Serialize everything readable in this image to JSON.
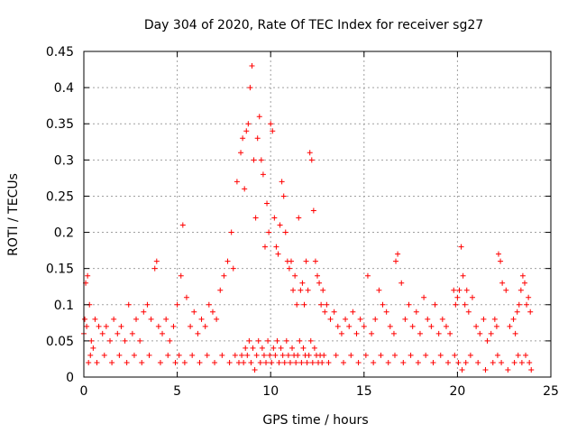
{
  "chart_data": {
    "type": "scatter",
    "title": "Day 304 of 2020, Rate Of TEC Index for receiver sg27",
    "xlabel": "GPS time / hours",
    "ylabel": "ROTI / TECUs",
    "xlim": [
      0,
      25
    ],
    "ylim": [
      0,
      0.45
    ],
    "x_ticks": [
      0,
      5,
      10,
      15,
      20,
      25
    ],
    "x_tick_labels": [
      "0",
      "5",
      "10",
      "15",
      "20",
      "25"
    ],
    "y_ticks": [
      0,
      0.05,
      0.1,
      0.15,
      0.2,
      0.25,
      0.3,
      0.35,
      0.4,
      0.45
    ],
    "y_tick_labels": [
      "0",
      "0.05",
      "0.1",
      "0.15",
      "0.2",
      "0.25",
      "0.3",
      "0.35",
      "0.4",
      "0.45"
    ],
    "grid": true,
    "marker": "+",
    "series": [
      {
        "color": "#ff0000",
        "x": [
          0.0,
          0.1,
          0.2,
          0.3,
          0.4,
          0.5,
          0.6,
          0.8,
          1.0,
          1.2,
          1.4,
          1.6,
          1.8,
          2.0,
          2.2,
          2.4,
          2.6,
          2.8,
          3.0,
          3.2,
          3.4,
          3.6,
          3.8,
          3.9,
          4.0,
          4.2,
          4.4,
          4.6,
          4.8,
          5.0,
          5.2,
          5.3,
          5.5,
          5.7,
          5.9,
          6.1,
          6.3,
          6.5,
          6.7,
          6.9,
          7.1,
          7.3,
          7.5,
          7.7,
          7.9,
          8.0,
          8.2,
          8.4,
          8.5,
          8.6,
          8.7,
          8.8,
          8.9,
          9.0,
          9.1,
          9.2,
          9.3,
          9.4,
          9.5,
          9.6,
          9.7,
          9.8,
          9.9,
          10.0,
          10.1,
          10.2,
          10.3,
          10.4,
          10.5,
          10.6,
          10.7,
          10.8,
          10.9,
          11.0,
          11.1,
          11.2,
          11.3,
          11.4,
          11.5,
          11.6,
          11.7,
          11.8,
          11.9,
          12.0,
          12.1,
          12.2,
          12.3,
          12.4,
          12.5,
          12.6,
          12.7,
          12.8,
          12.9,
          13.0,
          13.2,
          13.4,
          13.6,
          13.8,
          14.0,
          14.2,
          14.4,
          14.6,
          14.8,
          15.0,
          15.2,
          15.4,
          15.6,
          15.8,
          16.0,
          16.2,
          16.4,
          16.6,
          16.7,
          16.8,
          17.0,
          17.2,
          17.4,
          17.6,
          17.8,
          18.0,
          18.2,
          18.4,
          18.6,
          18.8,
          19.0,
          19.2,
          19.4,
          19.6,
          19.8,
          19.9,
          20.0,
          20.1,
          20.2,
          20.3,
          20.4,
          20.5,
          20.6,
          20.8,
          21.0,
          21.2,
          21.4,
          21.6,
          21.8,
          22.0,
          22.1,
          22.2,
          22.3,
          22.4,
          22.6,
          22.8,
          23.0,
          23.1,
          23.2,
          23.3,
          23.4,
          23.5,
          23.6,
          23.7,
          23.8,
          23.9,
          0.05,
          0.15,
          0.25,
          0.35,
          0.7,
          1.1,
          1.5,
          1.9,
          2.3,
          2.7,
          3.1,
          3.5,
          4.1,
          4.5,
          4.9,
          5.1,
          5.4,
          5.8,
          6.2,
          6.6,
          7.0,
          7.4,
          7.8,
          8.1,
          8.3,
          8.45,
          8.55,
          8.65,
          8.75,
          8.85,
          8.95,
          9.05,
          9.15,
          9.25,
          9.35,
          9.45,
          9.55,
          9.65,
          9.75,
          9.85,
          9.95,
          10.05,
          10.15,
          10.25,
          10.35,
          10.45,
          10.55,
          10.65,
          10.75,
          10.85,
          10.95,
          11.05,
          11.15,
          11.25,
          11.35,
          11.45,
          11.55,
          11.65,
          11.75,
          11.85,
          11.95,
          12.05,
          12.15,
          12.25,
          12.35,
          12.45,
          12.55,
          12.65,
          12.75,
          12.85,
          13.1,
          13.5,
          13.9,
          14.3,
          14.7,
          15.1,
          15.5,
          15.9,
          16.3,
          16.65,
          17.1,
          17.5,
          17.9,
          18.3,
          18.7,
          19.1,
          19.5,
          19.85,
          20.05,
          20.25,
          20.45,
          20.7,
          21.1,
          21.5,
          21.9,
          22.15,
          22.35,
          22.7,
          23.05,
          23.25,
          23.45,
          23.65,
          23.85,
          23.95
        ],
        "y": [
          0.06,
          0.13,
          0.14,
          0.1,
          0.05,
          0.04,
          0.08,
          0.07,
          0.06,
          0.07,
          0.05,
          0.08,
          0.06,
          0.07,
          0.05,
          0.1,
          0.06,
          0.08,
          0.05,
          0.09,
          0.1,
          0.08,
          0.15,
          0.16,
          0.07,
          0.06,
          0.08,
          0.05,
          0.07,
          0.1,
          0.14,
          0.21,
          0.11,
          0.07,
          0.09,
          0.06,
          0.08,
          0.07,
          0.1,
          0.09,
          0.08,
          0.12,
          0.14,
          0.16,
          0.2,
          0.15,
          0.27,
          0.31,
          0.33,
          0.26,
          0.34,
          0.35,
          0.4,
          0.43,
          0.3,
          0.22,
          0.33,
          0.36,
          0.3,
          0.28,
          0.18,
          0.24,
          0.2,
          0.35,
          0.34,
          0.22,
          0.18,
          0.17,
          0.21,
          0.27,
          0.25,
          0.2,
          0.16,
          0.15,
          0.16,
          0.12,
          0.14,
          0.1,
          0.22,
          0.12,
          0.13,
          0.1,
          0.16,
          0.12,
          0.31,
          0.3,
          0.23,
          0.16,
          0.14,
          0.13,
          0.1,
          0.12,
          0.09,
          0.1,
          0.08,
          0.09,
          0.07,
          0.06,
          0.08,
          0.07,
          0.09,
          0.06,
          0.08,
          0.07,
          0.14,
          0.06,
          0.08,
          0.12,
          0.1,
          0.09,
          0.07,
          0.06,
          0.16,
          0.17,
          0.13,
          0.08,
          0.1,
          0.07,
          0.09,
          0.06,
          0.11,
          0.08,
          0.07,
          0.1,
          0.06,
          0.08,
          0.07,
          0.06,
          0.12,
          0.1,
          0.11,
          0.12,
          0.18,
          0.14,
          0.1,
          0.12,
          0.09,
          0.11,
          0.07,
          0.06,
          0.08,
          0.05,
          0.06,
          0.08,
          0.07,
          0.17,
          0.16,
          0.13,
          0.12,
          0.07,
          0.08,
          0.06,
          0.09,
          0.1,
          0.12,
          0.14,
          0.13,
          0.1,
          0.11,
          0.09,
          0.08,
          0.07,
          0.02,
          0.03,
          0.02,
          0.03,
          0.02,
          0.03,
          0.02,
          0.03,
          0.02,
          0.03,
          0.02,
          0.03,
          0.02,
          0.03,
          0.02,
          0.03,
          0.02,
          0.03,
          0.02,
          0.03,
          0.02,
          0.03,
          0.02,
          0.03,
          0.02,
          0.04,
          0.03,
          0.05,
          0.02,
          0.04,
          0.01,
          0.03,
          0.05,
          0.02,
          0.04,
          0.03,
          0.02,
          0.05,
          0.03,
          0.02,
          0.04,
          0.03,
          0.05,
          0.02,
          0.04,
          0.03,
          0.02,
          0.05,
          0.03,
          0.02,
          0.04,
          0.03,
          0.02,
          0.03,
          0.05,
          0.02,
          0.04,
          0.03,
          0.02,
          0.03,
          0.05,
          0.02,
          0.04,
          0.03,
          0.02,
          0.03,
          0.02,
          0.03,
          0.02,
          0.03,
          0.02,
          0.03,
          0.02,
          0.03,
          0.02,
          0.03,
          0.02,
          0.03,
          0.02,
          0.03,
          0.02,
          0.03,
          0.02,
          0.03,
          0.02,
          0.03,
          0.02,
          0.01,
          0.02,
          0.03,
          0.02,
          0.01,
          0.02,
          0.03,
          0.02,
          0.01,
          0.02,
          0.03,
          0.02,
          0.03,
          0.02,
          0.01
        ]
      }
    ]
  }
}
